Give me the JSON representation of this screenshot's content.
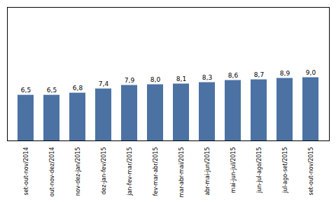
{
  "chart_data": {
    "type": "bar",
    "categories": [
      "set-out-nov/2014",
      "out-nov-dez/2014",
      "nov-dez-jan/2015",
      "dez-jan-fev/2015",
      "jan-fev-mar/2015",
      "fev-mar-abr/2015",
      "mar-abr-mai/2015",
      "abr-mai-jun/2015",
      "mai-jun-jul/2015",
      "jun-jul-ago/2015",
      "jul-ago-set/2015",
      "set-out-nov/2015"
    ],
    "values": [
      6.5,
      6.5,
      6.8,
      7.4,
      7.9,
      8.0,
      8.1,
      8.3,
      8.6,
      8.7,
      8.9,
      9.0
    ],
    "value_labels": [
      "6,5",
      "6,5",
      "6,8",
      "7,4",
      "7,9",
      "8,0",
      "8,1",
      "8,3",
      "8,6",
      "8,7",
      "8,9",
      "9,0"
    ],
    "color": "#4c72a4",
    "ylim": [
      0,
      19.0
    ],
    "data_labels": true,
    "tick_labels": "x"
  }
}
